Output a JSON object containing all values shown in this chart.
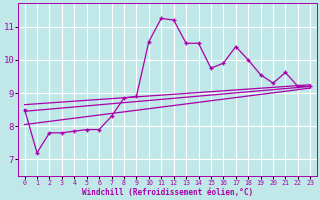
{
  "xlabel": "Windchill (Refroidissement éolien,°C)",
  "bg_color": "#c0e8e8",
  "line_color": "#aa00aa",
  "grid_color": "#ffffff",
  "xlim": [
    -0.5,
    23.5
  ],
  "ylim": [
    6.5,
    11.7
  ],
  "yticks": [
    7,
    8,
    9,
    10,
    11
  ],
  "xticks": [
    0,
    1,
    2,
    3,
    4,
    5,
    6,
    7,
    8,
    9,
    10,
    11,
    12,
    13,
    14,
    15,
    16,
    17,
    18,
    19,
    20,
    21,
    22,
    23
  ],
  "zigzag_x": [
    0,
    1,
    2,
    3,
    4,
    5,
    6,
    7,
    8,
    9,
    10,
    11,
    12,
    13,
    14,
    15,
    16,
    17,
    18,
    19,
    20,
    21,
    22,
    23
  ],
  "zigzag_y": [
    8.5,
    7.2,
    7.8,
    7.8,
    7.85,
    7.9,
    7.9,
    8.3,
    8.85,
    8.9,
    10.55,
    11.25,
    11.2,
    10.5,
    10.5,
    9.75,
    9.9,
    10.4,
    10.0,
    9.55,
    9.3,
    9.62,
    9.2,
    9.2
  ],
  "line1_x": [
    0,
    23
  ],
  "line1_y": [
    8.65,
    9.25
  ],
  "line2_x": [
    0,
    23
  ],
  "line2_y": [
    8.45,
    9.2
  ],
  "line3_x": [
    0,
    23
  ],
  "line3_y": [
    8.05,
    9.15
  ]
}
